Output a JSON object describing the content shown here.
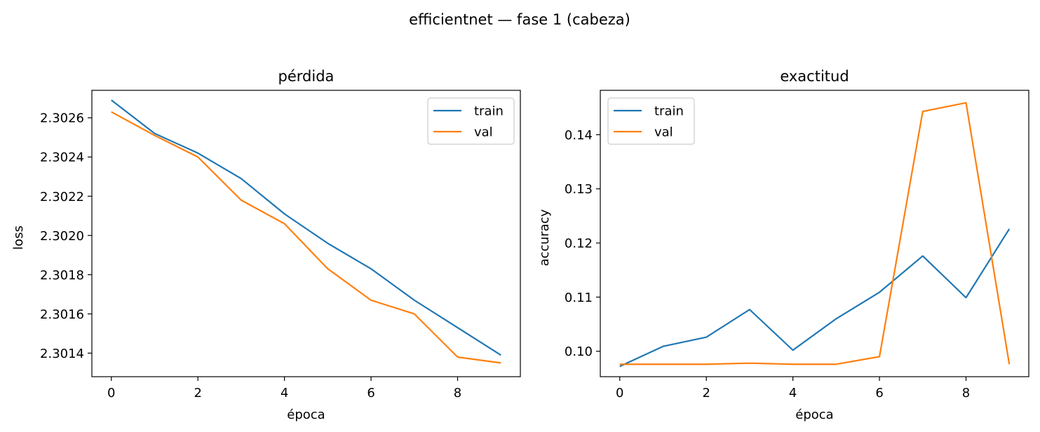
{
  "figure": {
    "suptitle": "efficientnet — fase 1 (cabeza)"
  },
  "colors": {
    "train": "#1f77b4",
    "val": "#ff7f0e"
  },
  "chart_data": [
    {
      "type": "line",
      "title": "pérdida",
      "xlabel": "época",
      "ylabel": "loss",
      "xlim": [
        -0.45,
        9.45
      ],
      "ylim": [
        2.30128,
        2.30274
      ],
      "xticks": [
        0,
        2,
        4,
        6,
        8
      ],
      "xtick_labels": [
        "0",
        "2",
        "4",
        "6",
        "8"
      ],
      "yticks": [
        2.3014,
        2.3016,
        2.3018,
        2.302,
        2.3022,
        2.3024,
        2.3026
      ],
      "ytick_labels": [
        "2.3014",
        "2.3016",
        "2.3018",
        "2.3020",
        "2.3022",
        "2.3024",
        "2.3026"
      ],
      "grid": false,
      "legend": "top-right",
      "x": [
        0,
        1,
        2,
        3,
        4,
        5,
        6,
        7,
        8,
        9
      ],
      "series": [
        {
          "name": "train",
          "color": "#1f77b4",
          "values": [
            2.30269,
            2.30252,
            2.30242,
            2.30229,
            2.30211,
            2.30196,
            2.30183,
            2.30167,
            2.30153,
            2.30139
          ]
        },
        {
          "name": "val",
          "color": "#ff7f0e",
          "values": [
            2.30263,
            2.30251,
            2.3024,
            2.30218,
            2.30206,
            2.30183,
            2.30167,
            2.3016,
            2.30138,
            2.30135
          ]
        }
      ]
    },
    {
      "type": "line",
      "title": "exactitud",
      "xlabel": "época",
      "ylabel": "accuracy",
      "xlim": [
        -0.45,
        9.45
      ],
      "ylim": [
        0.0953,
        0.1482
      ],
      "xticks": [
        0,
        2,
        4,
        6,
        8
      ],
      "xtick_labels": [
        "0",
        "2",
        "4",
        "6",
        "8"
      ],
      "yticks": [
        0.1,
        0.11,
        0.12,
        0.13,
        0.14
      ],
      "ytick_labels": [
        "0.10",
        "0.11",
        "0.12",
        "0.13",
        "0.14"
      ],
      "grid": false,
      "legend": "top-left",
      "x": [
        0,
        1,
        2,
        3,
        4,
        5,
        6,
        7,
        8,
        9
      ],
      "series": [
        {
          "name": "train",
          "color": "#1f77b4",
          "values": [
            0.0972,
            0.1009,
            0.1026,
            0.1077,
            0.1002,
            0.106,
            0.1109,
            0.1176,
            0.1099,
            0.1226
          ]
        },
        {
          "name": "val",
          "color": "#ff7f0e",
          "values": [
            0.0976,
            0.0976,
            0.0976,
            0.0978,
            0.0976,
            0.0976,
            0.099,
            0.1443,
            0.1459,
            0.0976
          ]
        }
      ]
    }
  ]
}
